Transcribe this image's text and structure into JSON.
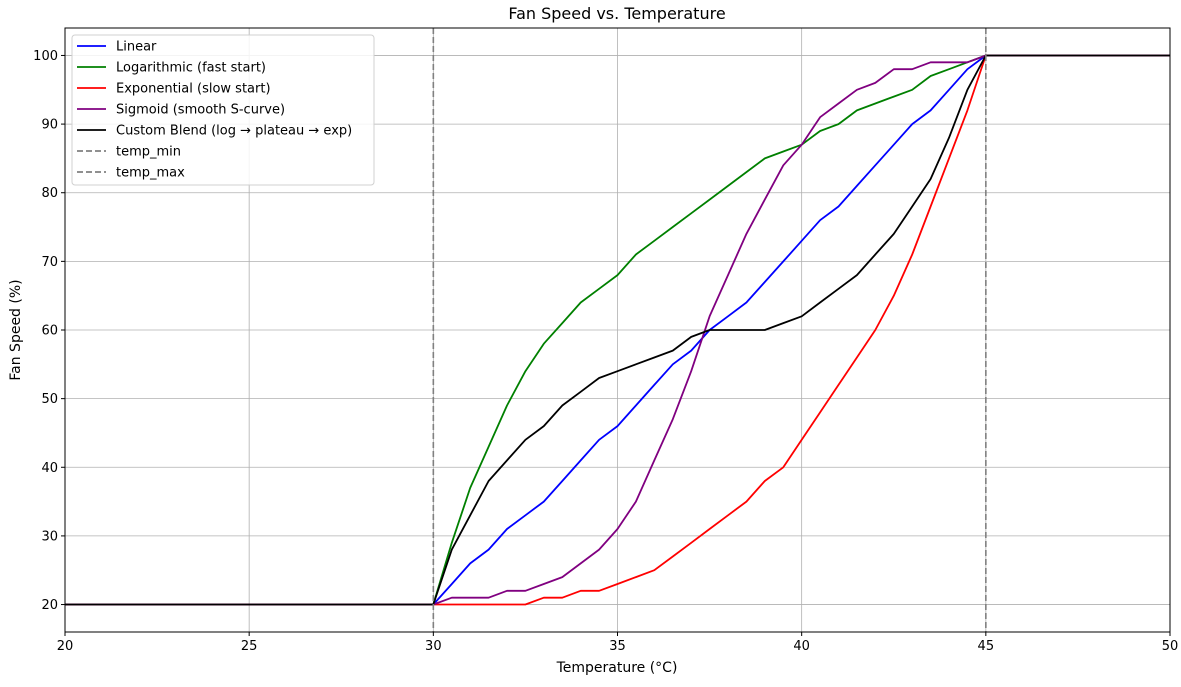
{
  "chart_data": {
    "type": "line",
    "title": "Fan Speed vs. Temperature",
    "xlabel": "Temperature (°C)",
    "ylabel": "Fan Speed (%)",
    "xlim": [
      20,
      50
    ],
    "ylim": [
      16,
      104
    ],
    "xticks": [
      20,
      25,
      30,
      35,
      40,
      45,
      50
    ],
    "yticks": [
      20,
      30,
      40,
      50,
      60,
      70,
      80,
      90,
      100
    ],
    "grid": true,
    "legend_position": "top-left",
    "series": [
      {
        "name": "Linear",
        "color": "#0000ff",
        "dash": false,
        "x": [
          20,
          30,
          30.5,
          31,
          31.5,
          32,
          32.5,
          33,
          33.5,
          34,
          34.5,
          35,
          35.5,
          36,
          36.5,
          37,
          37.5,
          38,
          38.5,
          39,
          39.5,
          40,
          40.5,
          41,
          41.5,
          42,
          42.5,
          43,
          43.5,
          44,
          44.5,
          45,
          50
        ],
        "y": [
          20,
          20,
          23,
          26,
          28,
          31,
          33,
          35,
          38,
          41,
          44,
          46,
          49,
          52,
          55,
          57,
          60,
          62,
          64,
          67,
          70,
          73,
          76,
          78,
          81,
          84,
          87,
          90,
          92,
          95,
          98,
          100,
          100
        ]
      },
      {
        "name": "Logarithmic (fast start)",
        "color": "#008000",
        "dash": false,
        "x": [
          20,
          30,
          30.5,
          31,
          31.5,
          32,
          32.5,
          33,
          33.5,
          34,
          34.5,
          35,
          35.5,
          36,
          36.5,
          37,
          37.5,
          38,
          38.5,
          39,
          39.5,
          40,
          40.5,
          41,
          41.5,
          42,
          42.5,
          43,
          43.5,
          44,
          44.5,
          45,
          50
        ],
        "y": [
          20,
          20,
          29,
          37,
          43,
          49,
          54,
          58,
          61,
          64,
          66,
          68,
          71,
          73,
          75,
          77,
          79,
          81,
          83,
          85,
          86,
          87,
          89,
          90,
          92,
          93,
          94,
          95,
          97,
          98,
          99,
          100,
          100
        ]
      },
      {
        "name": "Exponential (slow start)",
        "color": "#ff0000",
        "dash": false,
        "x": [
          20,
          30,
          31,
          32,
          32.5,
          33,
          33.5,
          34,
          34.5,
          35,
          35.5,
          36,
          36.5,
          37,
          37.5,
          38,
          38.5,
          39,
          39.5,
          40,
          40.5,
          41,
          41.5,
          42,
          42.5,
          43,
          43.5,
          44,
          44.5,
          45,
          50
        ],
        "y": [
          20,
          20,
          20,
          20,
          20,
          21,
          21,
          22,
          22,
          23,
          24,
          25,
          27,
          29,
          31,
          33,
          35,
          38,
          40,
          44,
          48,
          52,
          56,
          60,
          65,
          71,
          78,
          85,
          92,
          100,
          100
        ]
      },
      {
        "name": "Sigmoid (smooth S-curve)",
        "color": "#800080",
        "dash": false,
        "x": [
          20,
          30,
          30.5,
          31,
          31.5,
          32,
          32.5,
          33,
          33.5,
          34,
          34.5,
          35,
          35.5,
          36,
          36.5,
          37,
          37.5,
          38,
          38.5,
          39,
          39.5,
          40,
          40.5,
          41,
          41.5,
          42,
          42.5,
          43,
          43.5,
          44,
          44.5,
          45,
          50
        ],
        "y": [
          20,
          20,
          21,
          21,
          21,
          22,
          22,
          23,
          24,
          26,
          28,
          31,
          35,
          41,
          47,
          54,
          62,
          68,
          74,
          79,
          84,
          87,
          91,
          93,
          95,
          96,
          98,
          98,
          99,
          99,
          99,
          100,
          100
        ]
      },
      {
        "name": "Custom Blend (log → plateau → exp)",
        "color": "#000000",
        "dash": false,
        "x": [
          20,
          30,
          30.5,
          31,
          31.5,
          32,
          32.5,
          33,
          33.5,
          34,
          34.5,
          35,
          35.5,
          36,
          36.5,
          37,
          37.5,
          38,
          38.5,
          39,
          39.5,
          40,
          40.5,
          41,
          41.5,
          42,
          42.5,
          43,
          43.5,
          44,
          44.5,
          45,
          50
        ],
        "y": [
          20,
          20,
          28,
          33,
          38,
          41,
          44,
          46,
          49,
          51,
          53,
          54,
          55,
          56,
          57,
          59,
          60,
          60,
          60,
          60,
          61,
          62,
          64,
          66,
          68,
          71,
          74,
          78,
          82,
          88,
          95,
          100,
          100
        ]
      },
      {
        "name": "temp_min",
        "color": "#808080",
        "dash": true,
        "vline": 30
      },
      {
        "name": "temp_max",
        "color": "#808080",
        "dash": true,
        "vline": 45
      }
    ]
  }
}
